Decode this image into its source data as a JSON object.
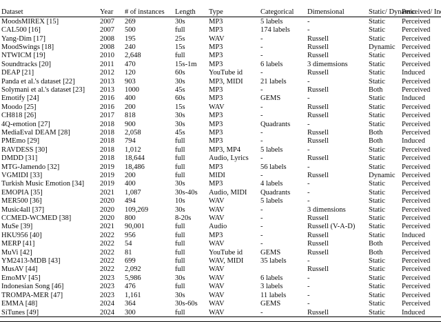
{
  "colors": {
    "background": "#ffffff",
    "text": "#0a0a0a",
    "rule": "#000000"
  },
  "table": {
    "columns": [
      "Dataset",
      "Year",
      "# of instances",
      "Length",
      "Type",
      "Categorical",
      "Dimensional",
      "Static/\nDynamic",
      "Perceived/\nInduced"
    ],
    "rows": [
      [
        "MoodsMIREX [15]",
        "2007",
        "269",
        "30s",
        "MP3",
        "5 labels",
        "-",
        "Static",
        "Perceived"
      ],
      [
        "CAL500 [16]",
        "2007",
        "500",
        "full",
        "MP3",
        "174 labels",
        "-",
        "Static",
        "Perceived"
      ],
      [
        "Yang-Dim [17]",
        "2008",
        "195",
        "25s",
        "WAV",
        "-",
        "Russell",
        "Static",
        "Perceived"
      ],
      [
        "MoodSwings [18]",
        "2008",
        "240",
        "15s",
        "MP3",
        "-",
        "Russell",
        "Dynamic",
        "Perceived"
      ],
      [
        "NTWICM [19]",
        "2010",
        "2,648",
        "full",
        "MP3",
        "-",
        "Russell",
        "Static",
        "Perceived"
      ],
      [
        "Soundtracks [20]",
        "2011",
        "470",
        "15s-1m",
        "MP3",
        "6 labels",
        "3 dimemsions",
        "Static",
        "Perceived"
      ],
      [
        "DEAP [21]",
        "2012",
        "120",
        "60s",
        "YouTube id",
        "-",
        "Russell",
        "Static",
        "Induced"
      ],
      [
        "Panda et al.'s dataset [22]",
        "2013",
        "903",
        "30s",
        "MP3, MIDI",
        "21 labels",
        "-",
        "Static",
        "Perceived"
      ],
      [
        "Solymani et al.'s dataset [23]",
        "2013",
        "1000",
        "45s",
        "MP3",
        "-",
        "Russell",
        "Both",
        "Perceived"
      ],
      [
        "Emotify [24]",
        "2016",
        "400",
        "60s",
        "MP3",
        "GEMS",
        "-",
        "Static",
        "Induced"
      ],
      [
        "Moodo [25]",
        "2016",
        "200",
        "15s",
        "WAV",
        "-",
        "Russell",
        "Static",
        "Perceived"
      ],
      [
        "CH818 [26]",
        "2017",
        "818",
        "30s",
        "MP3",
        "-",
        "Russell",
        "Static",
        "Perceived"
      ],
      [
        "4Q-emotion [27]",
        "2018",
        "900",
        "30s",
        "MP3",
        "Quadrants",
        "-",
        "Static",
        "Perceived"
      ],
      [
        "MediaEval DEAM [28]",
        "2018",
        "2,058",
        "45s",
        "MP3",
        "-",
        "Russell",
        "Both",
        "Perceived"
      ],
      [
        "PMEmo [29]",
        "2018",
        "794",
        "full",
        "MP3",
        "-",
        "Russell",
        "Both",
        "Induced"
      ],
      [
        "RAVDESS [30]",
        "2018",
        "1,012",
        "full",
        "MP3, MP4",
        "5 labels",
        "-",
        "Static",
        "Perceived"
      ],
      [
        "DMDD [31]",
        "2018",
        "18,644",
        "full",
        "Audio, Lyrics",
        "-",
        "Russell",
        "Static",
        "Perceived"
      ],
      [
        "MTG-Jamendo [32]",
        "2019",
        "18,486",
        "full",
        "MP3",
        "56 labels",
        "-",
        "Static",
        "Perceived"
      ],
      [
        "VGMIDI [33]",
        "2019",
        "200",
        "full",
        "MIDI",
        "-",
        "Russell",
        "Dynamic",
        "Perceived"
      ],
      [
        "Turkish Music Emotion [34]",
        "2019",
        "400",
        "30s",
        "MP3",
        "4 labels",
        "-",
        "Static",
        "Perceived"
      ],
      [
        "EMOPIA [35]",
        "2021",
        "1,087",
        "30s-40s",
        "Audio, MIDI",
        "Quadrants",
        "-",
        "Static",
        "Perceived"
      ],
      [
        "MER500 [36]",
        "2020",
        "494",
        "10s",
        "WAV",
        "5 labels",
        "-",
        "Static",
        "Perceived"
      ],
      [
        "Music4all [37]",
        "2020",
        "109,269",
        "30s",
        "WAV",
        "-",
        "3 dimensions",
        "Static",
        "Perceived"
      ],
      [
        "CCMED-WCMED [38]",
        "2020",
        "800",
        "8-20s",
        "WAV",
        "-",
        "Russell",
        "Static",
        "Perceived"
      ],
      [
        "MuSe [39]",
        "2021",
        "90,001",
        "full",
        "Audio",
        "-",
        "Russell (V-A-D)",
        "Static",
        "Perceived"
      ],
      [
        "HKU956 [40]",
        "2022",
        "956",
        "full",
        "MP3",
        "-",
        "Russell",
        "Static",
        "Induced"
      ],
      [
        "MERP [41]",
        "2022",
        "54",
        "full",
        "WAV",
        "-",
        "Russell",
        "Both",
        "Perceived"
      ],
      [
        "MuVi [42]",
        "2022",
        "81",
        "full",
        "YouTube id",
        "GEMS",
        "Russell",
        "Both",
        "Perceived"
      ],
      [
        "YM2413-MDB [43]",
        "2022",
        "699",
        "full",
        "WAV, MIDI",
        "35 labels",
        "-",
        "Static",
        "Perceived"
      ],
      [
        "MusAV [44]",
        "2022",
        "2,092",
        "full",
        "WAV",
        "",
        "Russell",
        "Static",
        "Perceived"
      ],
      [
        "EmoMV [45]",
        "2023",
        "5,986",
        "30s",
        "WAV",
        "6 labels",
        "-",
        "Static",
        "Perceived"
      ],
      [
        "Indonesian Song [46]",
        "2023",
        "476",
        "full",
        "WAV",
        "3 labels",
        "-",
        "Static",
        "Perceived"
      ],
      [
        "TROMPA-MER [47]",
        "2023",
        "1,161",
        "30s",
        "WAV",
        "11 labels",
        "-",
        "Static",
        "Perceived"
      ],
      [
        "EMMA [48]",
        "2024",
        "364",
        "30s-60s",
        "WAV",
        "GEMS",
        "-",
        "Static",
        "Perceived"
      ],
      [
        "SiTunes [49]",
        "2024",
        "300",
        "full",
        "WAV",
        "-",
        "Russell",
        "Static",
        "Induced"
      ]
    ]
  }
}
